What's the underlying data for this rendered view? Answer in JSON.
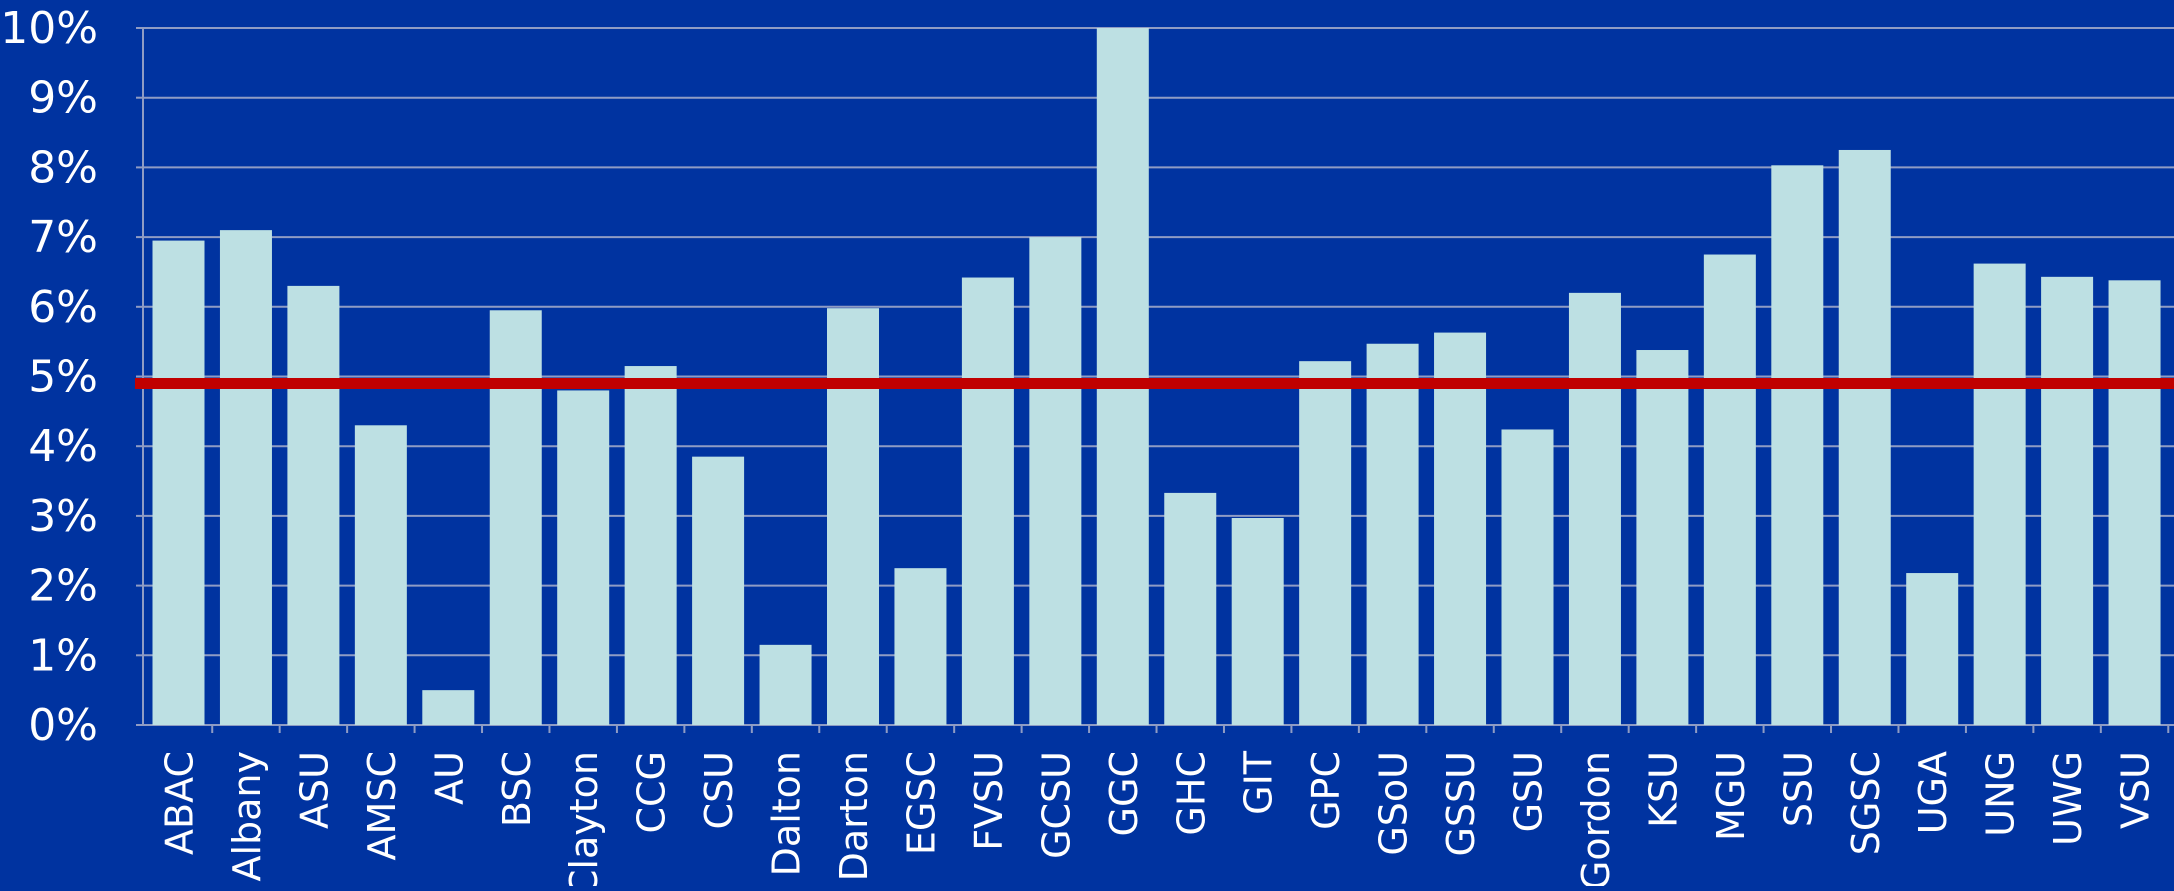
{
  "chart_data": {
    "type": "bar",
    "categories": [
      "ABAC",
      "Albany",
      "ASU",
      "AMSC",
      "AU",
      "BSC",
      "Clayton",
      "CCG",
      "CSU",
      "Dalton",
      "Darton",
      "EGSC",
      "FVSU",
      "GCSU",
      "GGC",
      "GHC",
      "GIT",
      "GPC",
      "GSoU",
      "GSSU",
      "GSU",
      "Gordon",
      "KSU",
      "MGU",
      "SSU",
      "SGSC",
      "UGA",
      "UNG",
      "UWG",
      "VSU"
    ],
    "values": [
      6.95,
      7.1,
      6.3,
      4.3,
      0.5,
      5.95,
      4.8,
      5.15,
      3.85,
      1.15,
      5.98,
      2.25,
      6.42,
      7.0,
      10.0,
      3.33,
      2.97,
      5.22,
      5.47,
      5.63,
      4.24,
      6.2,
      5.38,
      6.75,
      8.03,
      8.25,
      2.18,
      6.62,
      6.43,
      6.38
    ],
    "reference_line": {
      "value": 4.9
    },
    "ylim": [
      0,
      10
    ],
    "yticks": [
      0,
      1,
      2,
      3,
      4,
      5,
      6,
      7,
      8,
      9,
      10
    ],
    "ytick_labels": [
      "0%",
      "1%",
      "2%",
      "3%",
      "4%",
      "5%",
      "6%",
      "7%",
      "8%",
      "9%",
      "10%"
    ],
    "title": "",
    "xlabel": "",
    "ylabel": "",
    "grid": true,
    "colors": {
      "background": "#0033a0",
      "bar": "#bde0e3",
      "reference_line": "#c00000",
      "grid": "#8f9cc4",
      "text": "#ffffff"
    }
  }
}
